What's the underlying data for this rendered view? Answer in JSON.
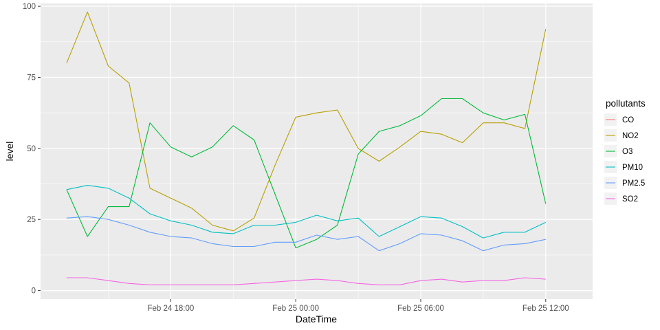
{
  "chart_data": {
    "type": "line",
    "xlabel": "DateTime",
    "ylabel": "level",
    "ylim": [
      -3,
      101
    ],
    "yticks": [
      0,
      25,
      50,
      75,
      100
    ],
    "xlim": [
      "2024-02-24 11:45",
      "2024-02-25 14:15"
    ],
    "xticks": [
      {
        "value": "2024-02-24 18:00",
        "label": "Feb 24 18:00"
      },
      {
        "value": "2024-02-25 00:00",
        "label": "Feb 25 00:00"
      },
      {
        "value": "2024-02-25 06:00",
        "label": "Feb 25 06:00"
      },
      {
        "value": "2024-02-25 12:00",
        "label": "Feb 25 12:00"
      }
    ],
    "x": [
      "2024-02-24 13:00",
      "2024-02-24 14:00",
      "2024-02-24 15:00",
      "2024-02-24 16:00",
      "2024-02-24 17:00",
      "2024-02-24 18:00",
      "2024-02-24 19:00",
      "2024-02-24 20:00",
      "2024-02-24 21:00",
      "2024-02-24 22:00",
      "2024-02-24 23:00",
      "2024-02-25 00:00",
      "2024-02-25 01:00",
      "2024-02-25 02:00",
      "2024-02-25 03:00",
      "2024-02-25 04:00",
      "2024-02-25 05:00",
      "2024-02-25 06:00",
      "2024-02-25 07:00",
      "2024-02-25 08:00",
      "2024-02-25 09:00",
      "2024-02-25 10:00",
      "2024-02-25 11:00",
      "2024-02-25 12:00",
      "2024-02-25 13:00"
    ],
    "grid": true,
    "background": "#ebebeb",
    "legend": {
      "title": "pollutants",
      "position": "right"
    },
    "series": [
      {
        "name": "CO",
        "color": "#F8766D",
        "values": [
          null,
          null,
          null,
          null,
          null,
          null,
          null,
          null,
          null,
          null,
          null,
          null,
          null,
          null,
          null,
          null,
          null,
          null,
          null,
          null,
          null,
          null,
          null,
          null,
          null
        ]
      },
      {
        "name": "NO2",
        "color": "#B79F00",
        "values": [
          80,
          98,
          79,
          73,
          36,
          32.5,
          29,
          23,
          21,
          25.5,
          44,
          61,
          62.5,
          63.5,
          50,
          45.5,
          50.5,
          56,
          55,
          52,
          59,
          59,
          57,
          92,
          null
        ]
      },
      {
        "name": "O3",
        "color": "#00BA38",
        "values": [
          35.5,
          19,
          29.5,
          29.5,
          59,
          50.5,
          47,
          50.5,
          58,
          53,
          34,
          15,
          18,
          23,
          48,
          56,
          58,
          61.5,
          67.5,
          67.5,
          62.5,
          60,
          62,
          30.5,
          null
        ]
      },
      {
        "name": "PM10",
        "color": "#00BFC4",
        "values": [
          35.5,
          37,
          36,
          32.5,
          27,
          24.5,
          23,
          20.5,
          20,
          23,
          23,
          24,
          26.5,
          24.5,
          25.5,
          19,
          22.5,
          26,
          25.5,
          22.5,
          18.5,
          20.5,
          20.5,
          24,
          null
        ]
      },
      {
        "name": "PM2.5",
        "color": "#619CFF",
        "values": [
          25.5,
          26,
          25,
          23,
          20.5,
          19,
          18.5,
          16.5,
          15.5,
          15.5,
          17,
          17,
          19.5,
          18,
          19,
          14,
          16.5,
          20,
          19.5,
          17.5,
          14,
          16,
          16.5,
          18,
          null
        ]
      },
      {
        "name": "SO2",
        "color": "#F564E3",
        "values": [
          4.5,
          4.5,
          3.5,
          2.5,
          2,
          2,
          2,
          2,
          2,
          2.5,
          3,
          3.5,
          4,
          3.5,
          2.5,
          2,
          2,
          3.5,
          4,
          3,
          3.5,
          3.5,
          4.5,
          4,
          null
        ]
      }
    ]
  }
}
